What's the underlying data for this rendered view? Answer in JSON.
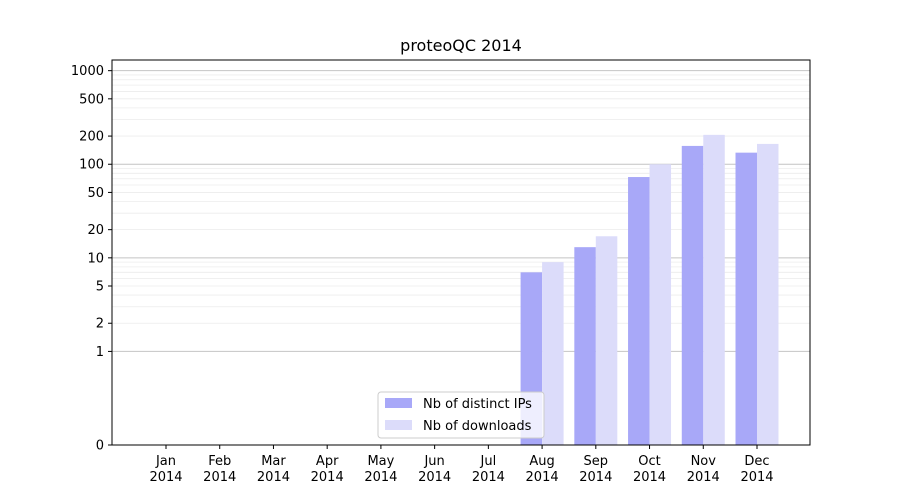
{
  "chart_data": {
    "type": "bar",
    "title": "proteoQC 2014",
    "xlabel": "",
    "ylabel": "",
    "y_scale": "symlog",
    "ylim": [
      0,
      1300
    ],
    "y_ticks": [
      0,
      1,
      2,
      5,
      10,
      20,
      50,
      100,
      200,
      500,
      1000
    ],
    "categories": [
      "Jan\n2014",
      "Feb\n2014",
      "Mar\n2014",
      "Apr\n2014",
      "May\n2014",
      "Jun\n2014",
      "Jul\n2014",
      "Aug\n2014",
      "Sep\n2014",
      "Oct\n2014",
      "Nov\n2014",
      "Dec\n2014"
    ],
    "series": [
      {
        "name": "Nb of distinct IPs",
        "color": "#a8a8f8",
        "values": [
          0,
          0,
          0,
          0,
          0,
          0,
          0,
          7,
          13,
          73,
          157,
          133
        ]
      },
      {
        "name": "Nb of downloads",
        "color": "#dcdcfa",
        "values": [
          0,
          0,
          0,
          0,
          0,
          0,
          0,
          9,
          17,
          100,
          206,
          165
        ]
      }
    ],
    "grid": true,
    "legend": "bottom-center"
  }
}
